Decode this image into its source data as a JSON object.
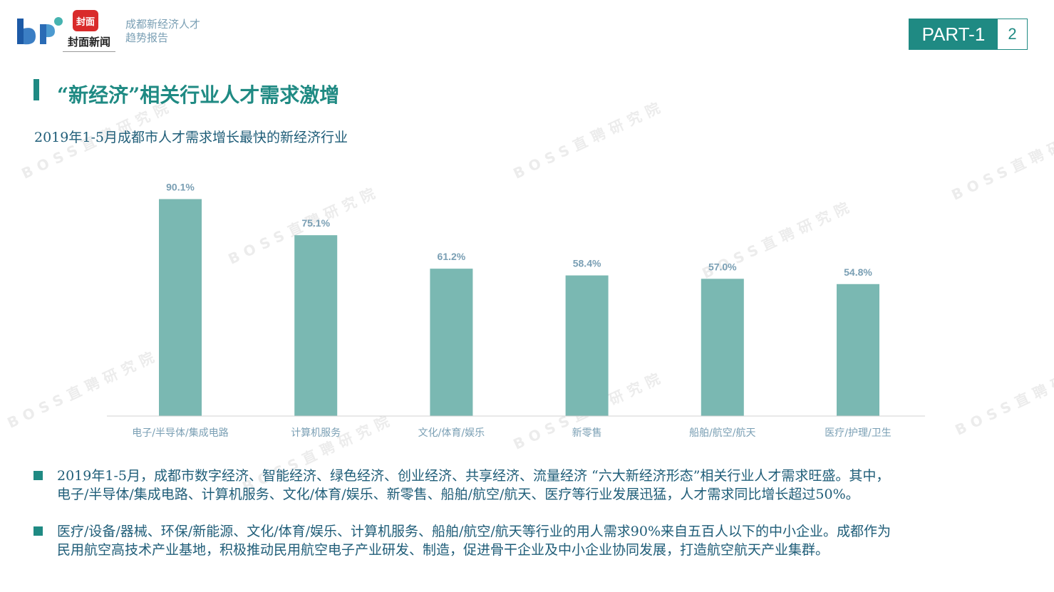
{
  "header": {
    "logo_brand": "封面新闻",
    "logo_badge": "封面",
    "subtitle_line1": "成都新经济人才",
    "subtitle_line2": "趋势报告",
    "part_label": "PART-1",
    "page_number": "2"
  },
  "watermark_text": "BOSS直聘研究院",
  "page_title": "“新经济”相关行业人才需求激增",
  "chart_data": {
    "type": "bar",
    "title": "2019年1-5月成都市人才需求增长最快的新经济行业",
    "categories": [
      "电子/半导体/集成电路",
      "计算机服务",
      "文化/体育/娱乐",
      "新零售",
      "船舶/航空/航天",
      "医疗/护理/卫生"
    ],
    "values": [
      90.1,
      75.1,
      61.2,
      58.4,
      57.0,
      54.8
    ],
    "value_labels": [
      "90.1%",
      "75.1%",
      "61.2%",
      "58.4%",
      "57.0%",
      "54.8%"
    ],
    "xlabel": "",
    "ylabel": "",
    "ylim": [
      0,
      100
    ],
    "grid": false,
    "bar_color": "#7ab8b2",
    "label_color": "#7a9fb4"
  },
  "bullets": [
    {
      "line1": "2019年1-5月，成都市数字经济、智能经济、绿色经济、创业经济、共享经济、流量经济 “六大新经济形态”相关行业人才需求旺盛。其中，",
      "line2": "电子/半导体/集成电路、计算机服务、文化/体育/娱乐、新零售、船舶/航空/航天、医疗等行业发展迅猛，人才需求同比增长超过50%。"
    },
    {
      "line1": "医疗/设备/器械、环保/新能源、文化/体育/娱乐、计算机服务、船舶/航空/航天等行业的用人需求90%来自五百人以下的中小企业。成都作为",
      "line2": "民用航空高技术产业基地，积极推动民用航空电子产业研发、制造，促进骨干企业及中小企业协同发展，打造航空航天产业集群。"
    }
  ],
  "colors": {
    "accent": "#1f8a83",
    "text_blue": "#1f5d78"
  }
}
